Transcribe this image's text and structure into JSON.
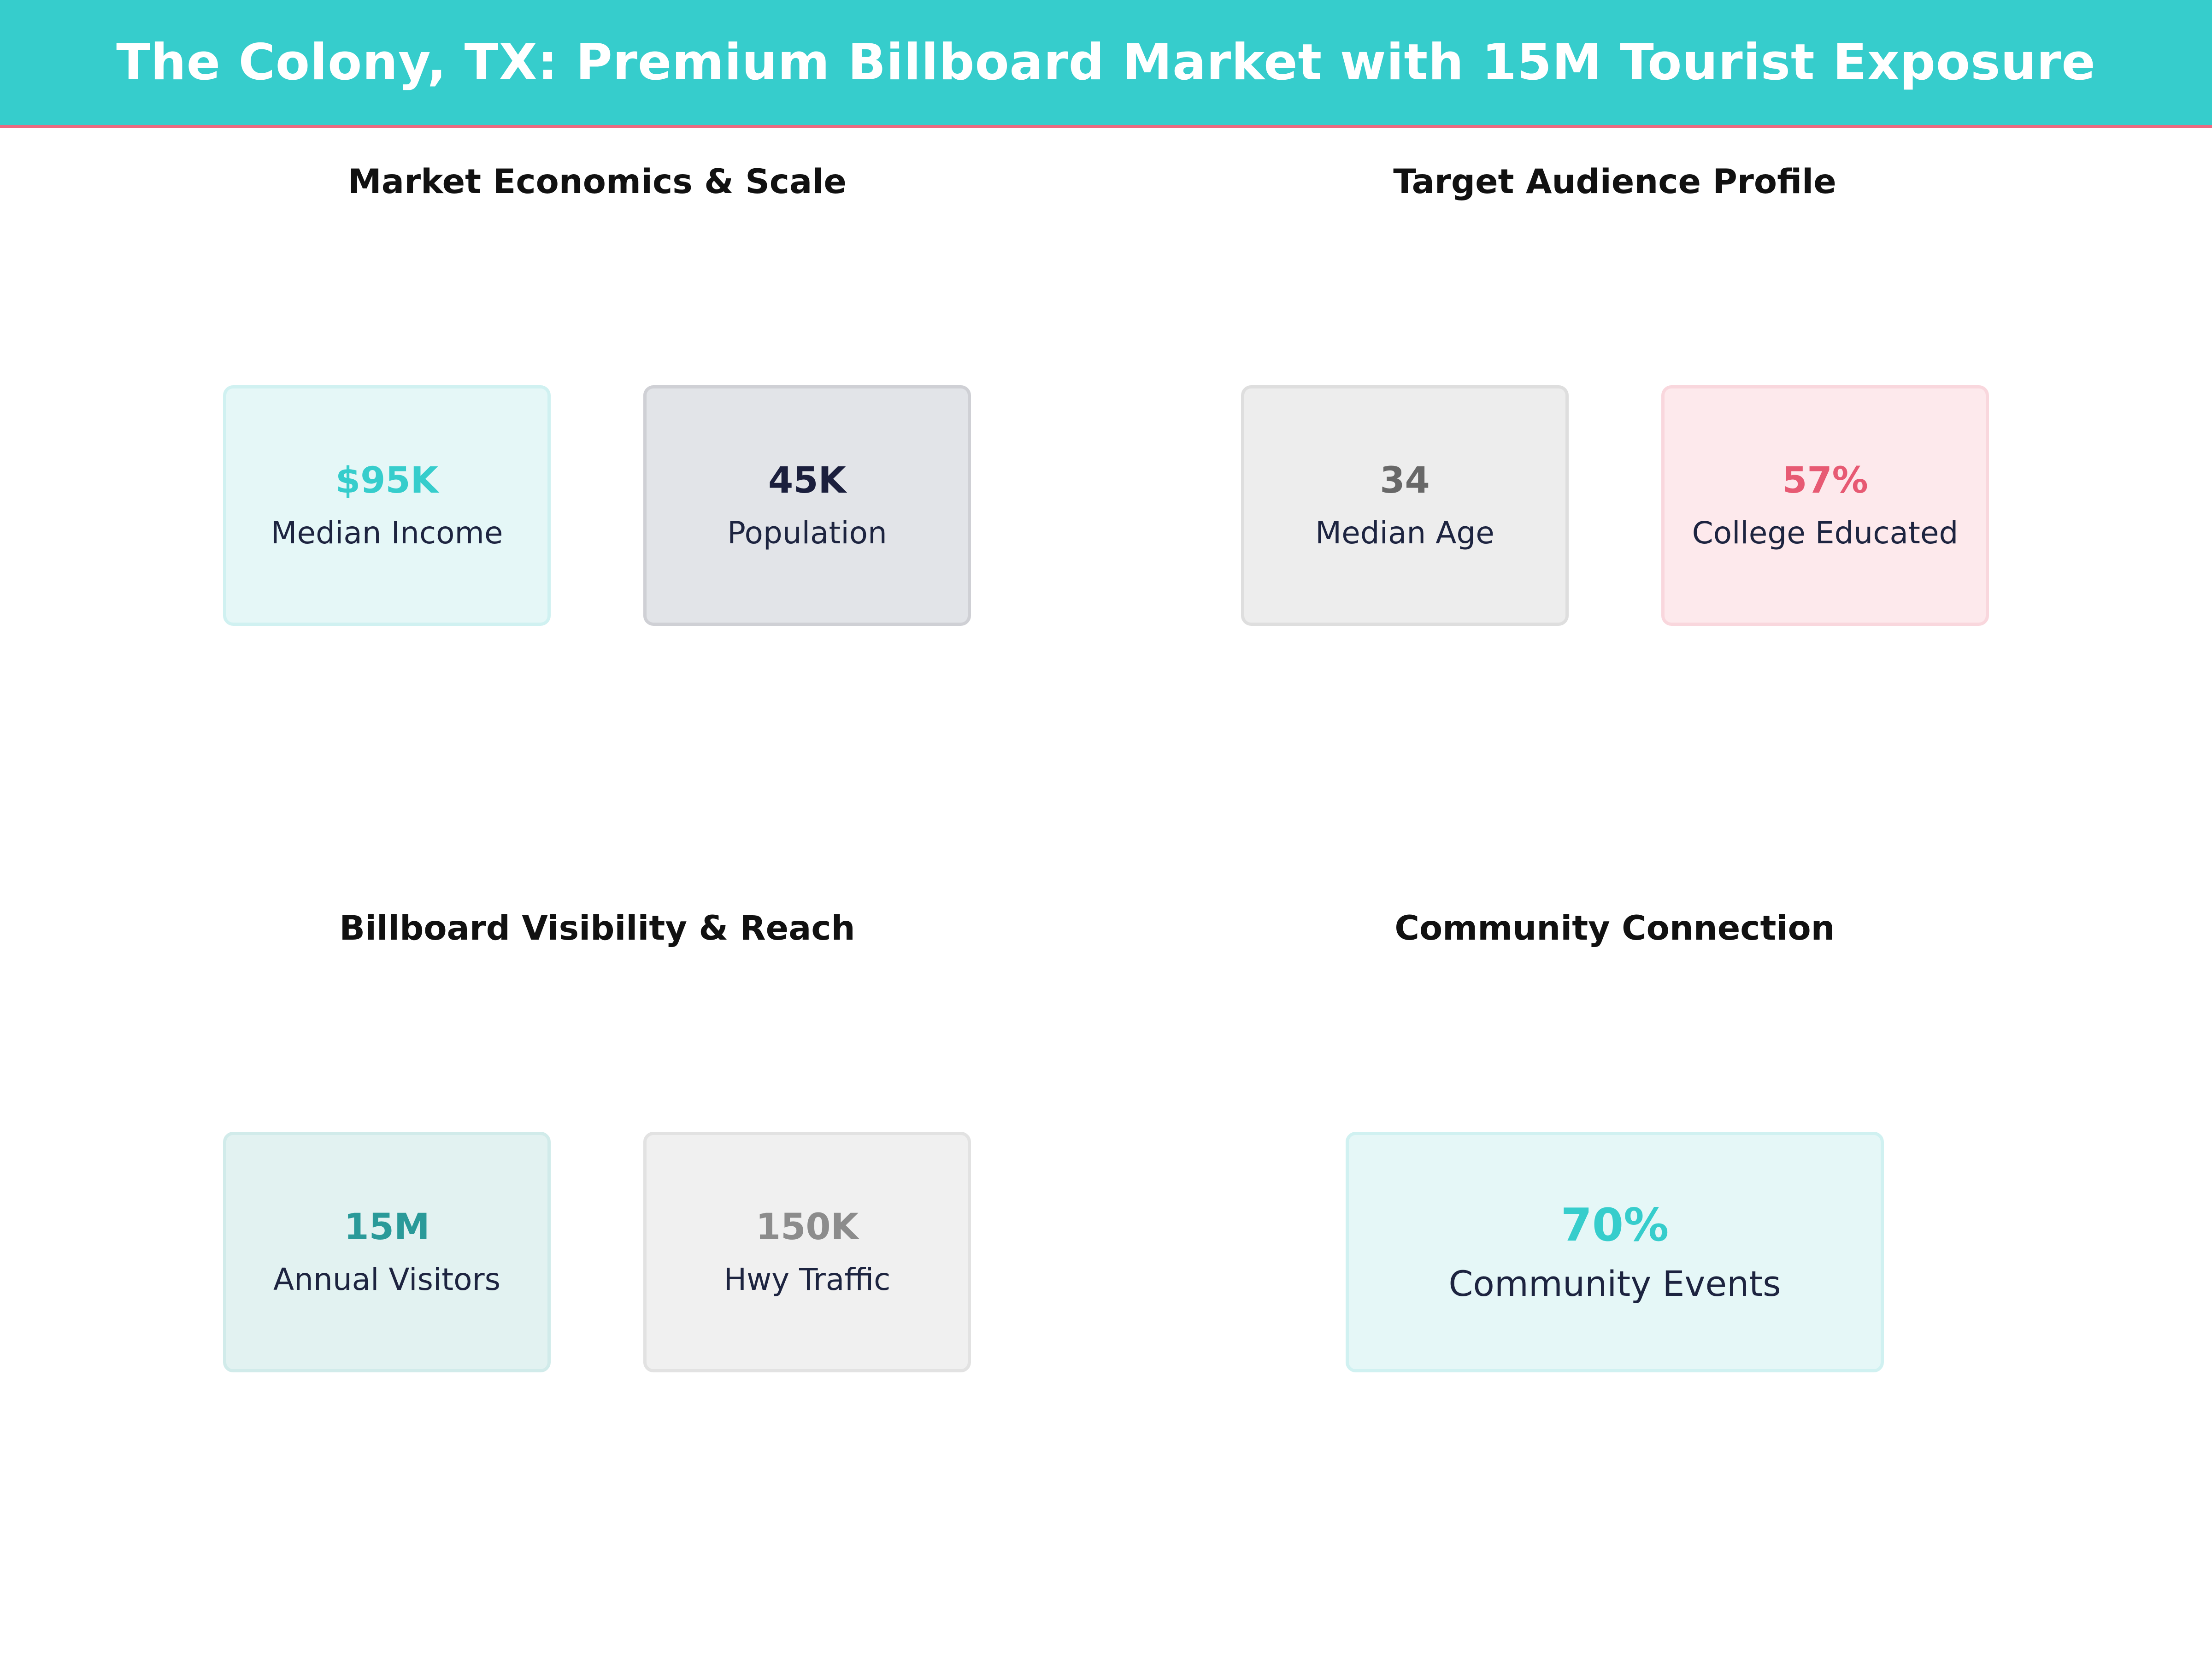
{
  "header": {
    "title": "The Colony, TX: Premium Billboard Market with 15M Tourist Exposure"
  },
  "colors": {
    "accent": "#36cdcc",
    "accent_border": "#ec6a80",
    "navy": "#1b1f3d",
    "pink": "#e75a73",
    "teal_dark": "#2a9a99",
    "gray": "#686868"
  },
  "sections": {
    "market": {
      "title": "Market Economics & Scale",
      "cards": [
        {
          "value": "$95K",
          "label": "Median Income"
        },
        {
          "value": "45K",
          "label": "Population"
        }
      ]
    },
    "audience": {
      "title": "Target Audience Profile",
      "cards": [
        {
          "value": "34",
          "label": "Median Age"
        },
        {
          "value": "57%",
          "label": "College Educated"
        }
      ]
    },
    "visibility": {
      "title": "Billboard Visibility & Reach",
      "cards": [
        {
          "value": "15M",
          "label": "Annual Visitors"
        },
        {
          "value": "150K",
          "label": "Hwy Traffic"
        }
      ]
    },
    "community": {
      "title": "Community Connection",
      "cards": [
        {
          "value": "70%",
          "label": "Community Events"
        }
      ]
    }
  }
}
